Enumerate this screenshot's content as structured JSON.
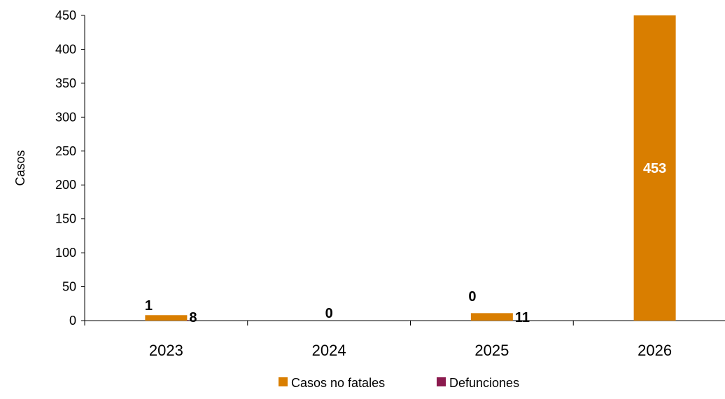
{
  "chart_data": {
    "type": "bar",
    "categories": [
      "2023",
      "2024",
      "2025",
      "2026"
    ],
    "series": [
      {
        "name": "Casos no fatales",
        "values": [
          8,
          0,
          11,
          453
        ],
        "value_labels": [
          "8",
          "0",
          "11",
          "453"
        ],
        "color": "#D97E00"
      },
      {
        "name": "Defunciones",
        "values": [
          1,
          0,
          0,
          null
        ],
        "value_labels": [
          "1",
          "0",
          "0",
          ""
        ],
        "color": "#8B1A4E"
      }
    ],
    "xlabel": "",
    "ylabel": "Casos",
    "ylim": [
      0,
      450
    ],
    "yticks": [
      0,
      50,
      100,
      150,
      200,
      250,
      300,
      350,
      400,
      450
    ],
    "grid": false,
    "legend_position": "bottom-center"
  }
}
